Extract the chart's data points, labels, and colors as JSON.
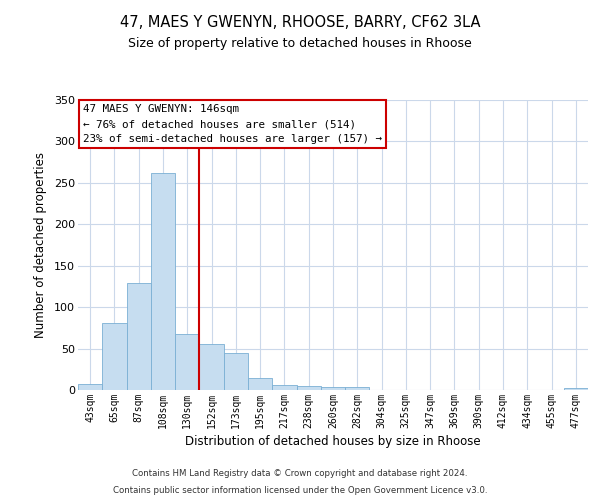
{
  "title": "47, MAES Y GWENYN, RHOOSE, BARRY, CF62 3LA",
  "subtitle": "Size of property relative to detached houses in Rhoose",
  "xlabel": "Distribution of detached houses by size in Rhoose",
  "ylabel": "Number of detached properties",
  "categories": [
    "43sqm",
    "65sqm",
    "87sqm",
    "108sqm",
    "130sqm",
    "152sqm",
    "173sqm",
    "195sqm",
    "217sqm",
    "238sqm",
    "260sqm",
    "282sqm",
    "304sqm",
    "325sqm",
    "347sqm",
    "369sqm",
    "390sqm",
    "412sqm",
    "434sqm",
    "455sqm",
    "477sqm"
  ],
  "values": [
    7,
    81,
    129,
    262,
    67,
    56,
    45,
    15,
    6,
    5,
    4,
    4,
    0,
    0,
    0,
    0,
    0,
    0,
    0,
    0,
    2
  ],
  "bar_color": "#c6ddf0",
  "bar_edge_color": "#7aafd4",
  "vline_x": 4.5,
  "vline_color": "#cc0000",
  "annotation_line1": "47 MAES Y GWENYN: 146sqm",
  "annotation_line2": "← 76% of detached houses are smaller (514)",
  "annotation_line3": "23% of semi-detached houses are larger (157) →",
  "annotation_box_color": "#ffffff",
  "annotation_box_edge_color": "#cc0000",
  "ylim": [
    0,
    350
  ],
  "yticks": [
    0,
    50,
    100,
    150,
    200,
    250,
    300,
    350
  ],
  "footer_line1": "Contains HM Land Registry data © Crown copyright and database right 2024.",
  "footer_line2": "Contains public sector information licensed under the Open Government Licence v3.0.",
  "bg_color": "#ffffff",
  "grid_color": "#cbd8ea"
}
